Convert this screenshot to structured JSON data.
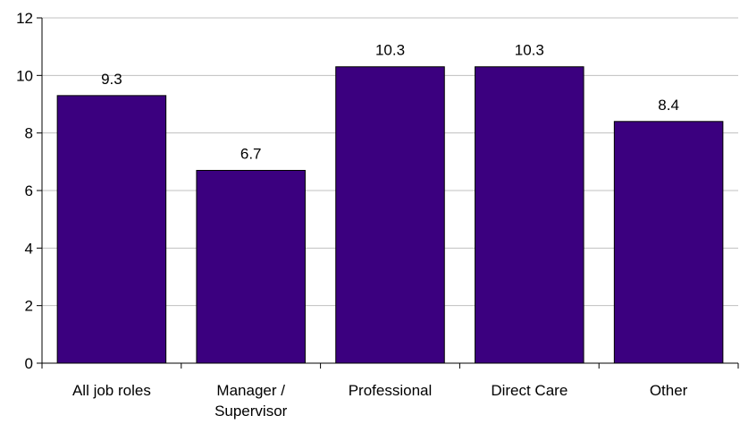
{
  "chart_data": {
    "type": "bar",
    "categories": [
      [
        "All job roles"
      ],
      [
        "Manager /",
        "Supervisor"
      ],
      [
        "Professional"
      ],
      [
        "Direct Care"
      ],
      [
        "Other"
      ]
    ],
    "values": [
      9.3,
      6.7,
      10.3,
      10.3,
      8.4
    ],
    "data_labels": [
      "9.3",
      "6.7",
      "10.3",
      "10.3",
      "8.4"
    ],
    "title": "",
    "xlabel": "",
    "ylabel": "",
    "ylim": [
      0,
      12
    ],
    "yticks": [
      0,
      2,
      4,
      6,
      8,
      10,
      12
    ],
    "grid": true,
    "legend": "none",
    "colors": {
      "bar_fill": "#3b007f",
      "bar_stroke": "#000000",
      "grid": "#c0c0c0",
      "axis": "#000000"
    }
  }
}
